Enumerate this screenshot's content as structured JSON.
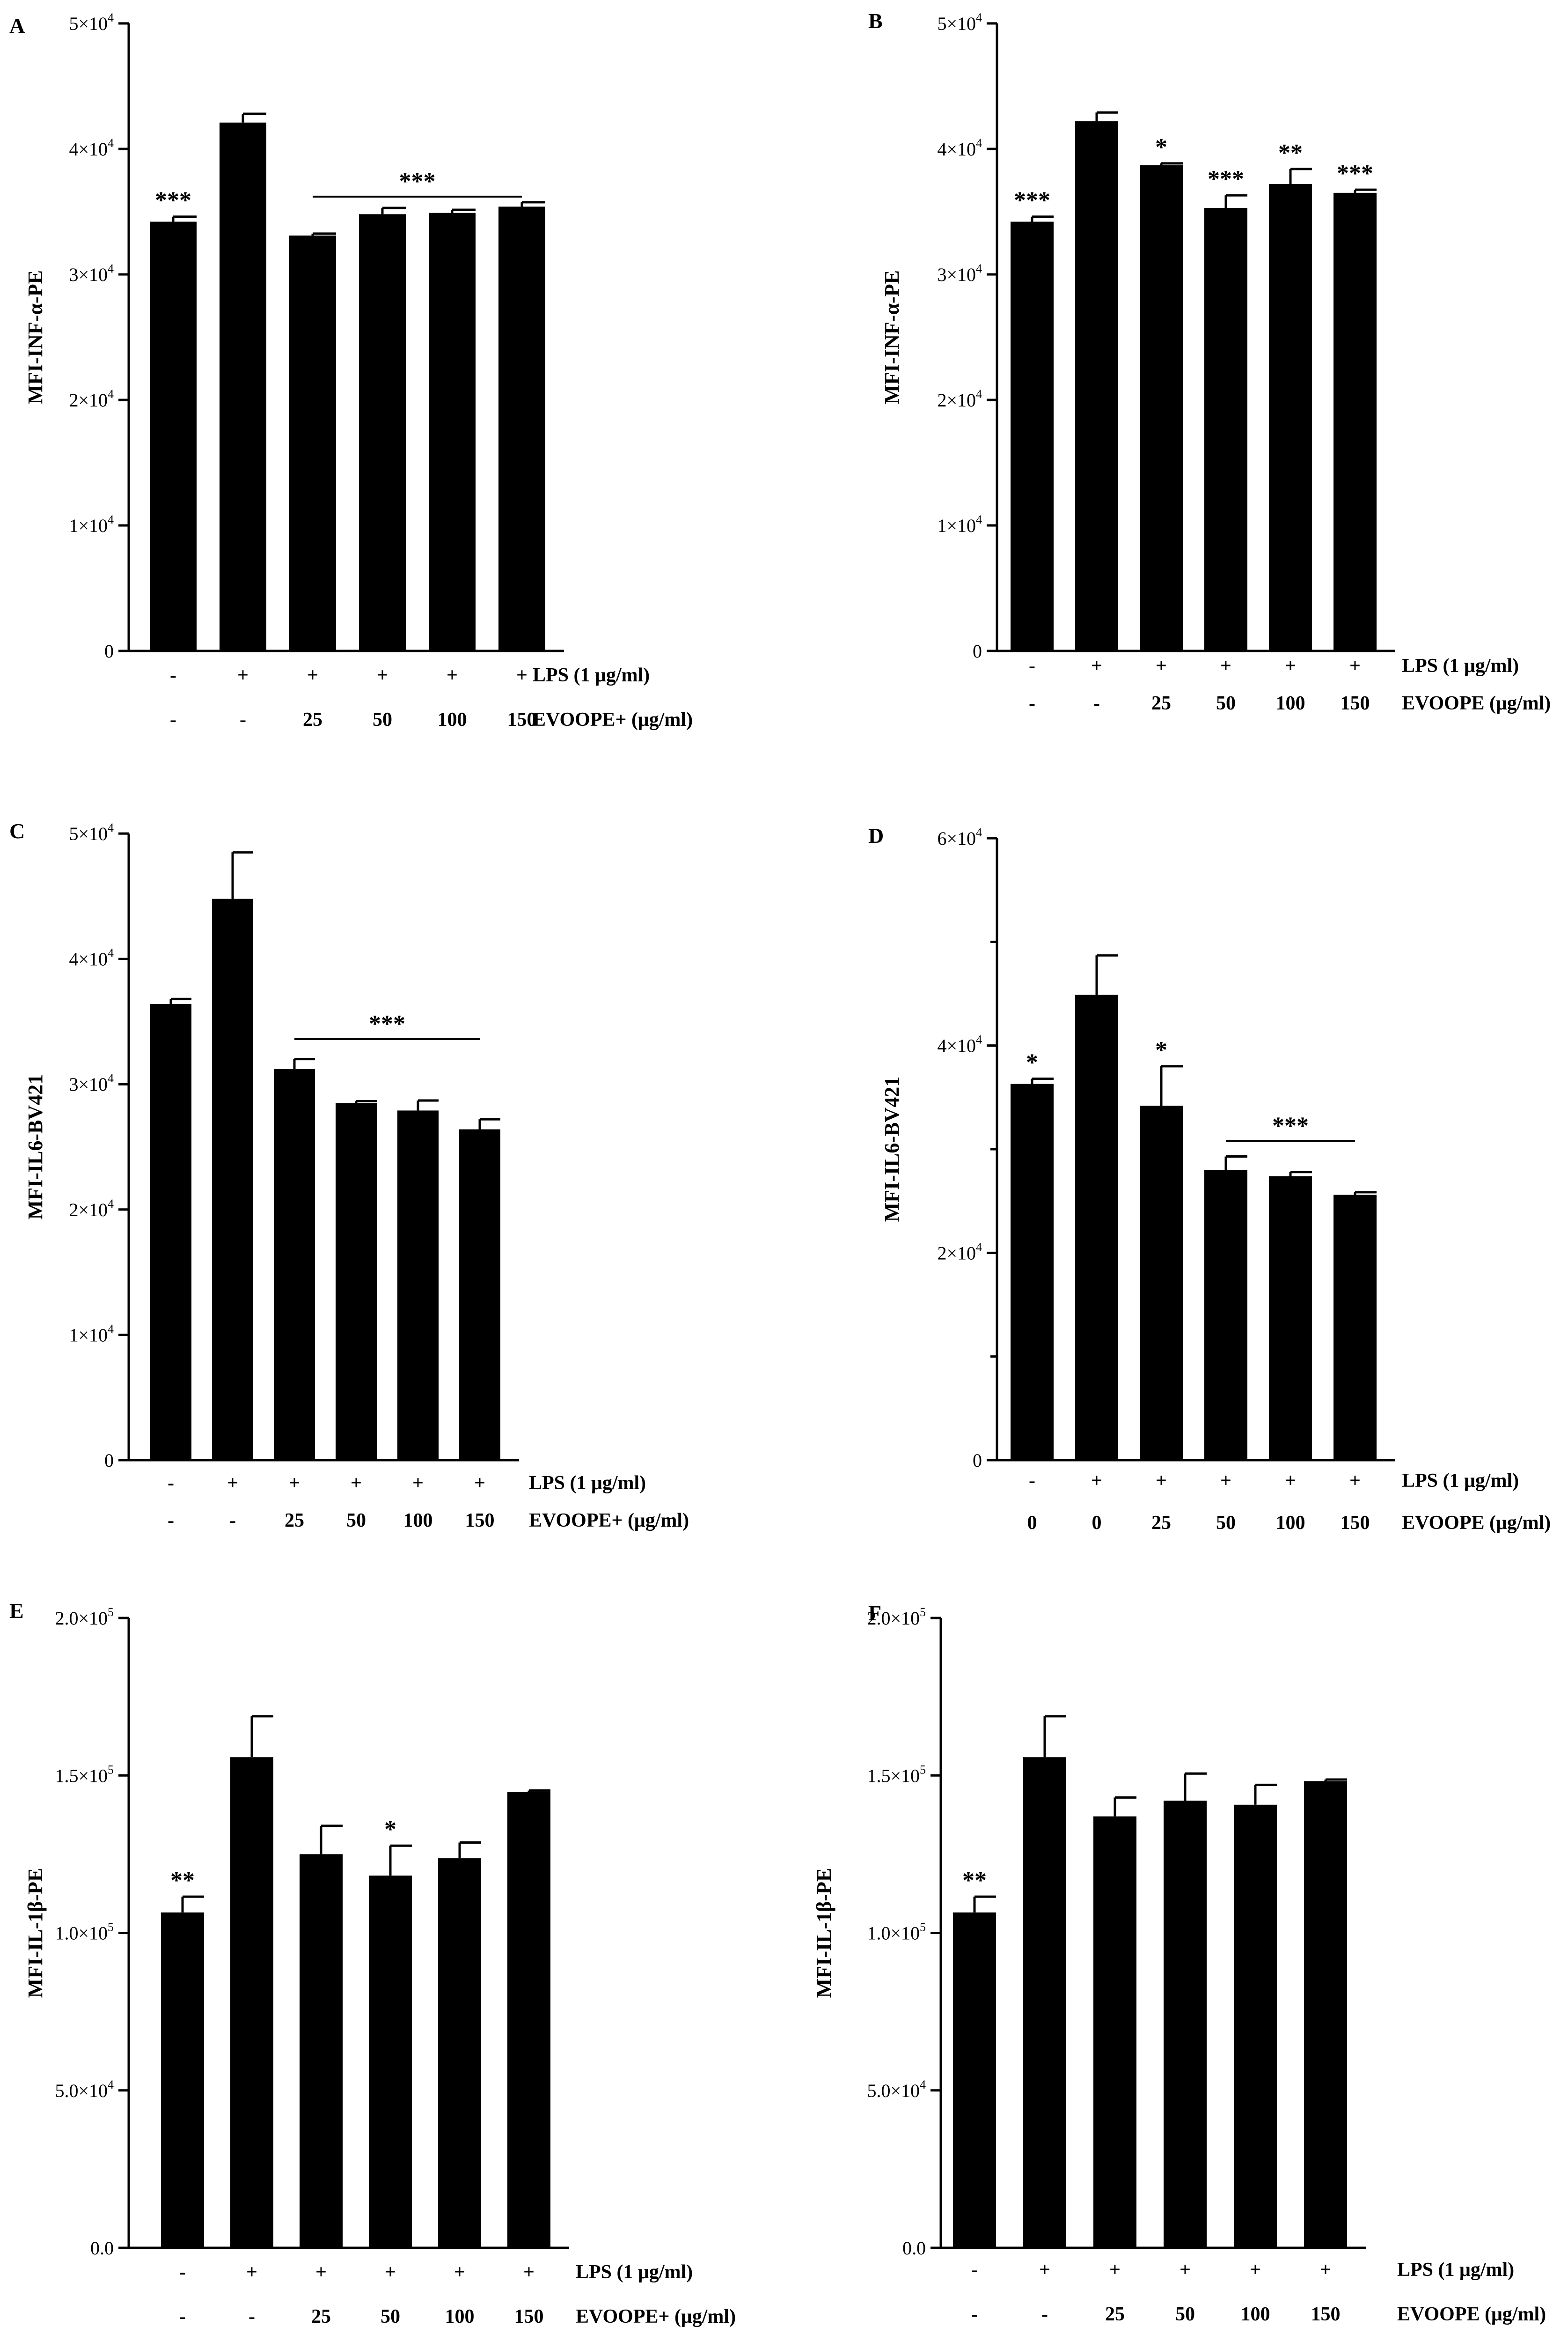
{
  "figure": {
    "background": "#ffffff",
    "bar_color": "#000000"
  },
  "chart_data": [
    {
      "type": "bar",
      "panel_label": "A",
      "ylabel": "MFI-INF-α-PE",
      "ylim": [
        0,
        50000
      ],
      "yticks": [
        0,
        10000,
        20000,
        30000,
        40000,
        50000
      ],
      "ytick_labels": [
        {
          "base": "0",
          "exp": ""
        },
        {
          "base": "1×10",
          "exp": "4"
        },
        {
          "base": "2×10",
          "exp": "4"
        },
        {
          "base": "3×10",
          "exp": "4"
        },
        {
          "base": "4×10",
          "exp": "4"
        },
        {
          "base": "5×10",
          "exp": "4"
        }
      ],
      "minor_ticks": [],
      "values": [
        34200,
        42100,
        33100,
        34800,
        34900,
        35400
      ],
      "errors": [
        400,
        700,
        150,
        500,
        250,
        350
      ],
      "annotations": [
        "***",
        "",
        "",
        "",
        "",
        ""
      ],
      "bracket": {
        "from": 2,
        "to": 5,
        "label": "***",
        "y": 36200
      },
      "rows": [
        {
          "label": "LPS (1 μg/ml)",
          "values": [
            "-",
            "+",
            "+",
            "+",
            "+",
            "+"
          ]
        },
        {
          "label": "EVOOPE+ (μg/ml)",
          "values": [
            "-",
            "-",
            "25",
            "50",
            "100",
            "150"
          ]
        }
      ]
    },
    {
      "type": "bar",
      "panel_label": "B",
      "ylabel": "MFI-INF-α-PE",
      "ylim": [
        0,
        50000
      ],
      "yticks": [
        0,
        10000,
        20000,
        30000,
        40000,
        50000
      ],
      "ytick_labels": [
        {
          "base": "0",
          "exp": ""
        },
        {
          "base": "1×10",
          "exp": "4"
        },
        {
          "base": "2×10",
          "exp": "4"
        },
        {
          "base": "3×10",
          "exp": "4"
        },
        {
          "base": "4×10",
          "exp": "4"
        },
        {
          "base": "5×10",
          "exp": "4"
        }
      ],
      "minor_ticks": [],
      "values": [
        34200,
        42200,
        38700,
        35300,
        37200,
        36500
      ],
      "errors": [
        400,
        700,
        150,
        1000,
        1200,
        250
      ],
      "annotations": [
        "***",
        "",
        "*",
        "***",
        "**",
        "***"
      ],
      "bracket": null,
      "rows": [
        {
          "label": "LPS (1 μg/ml)",
          "values": [
            "-",
            "+",
            "+",
            "+",
            "+",
            "+"
          ]
        },
        {
          "label": "EVOOPE (μg/ml)",
          "values": [
            "-",
            "-",
            "25",
            "50",
            "100",
            "150"
          ]
        }
      ]
    },
    {
      "type": "bar",
      "panel_label": "C",
      "ylabel": "MFI-IL6-BV421",
      "ylim": [
        0,
        50000
      ],
      "yticks": [
        0,
        10000,
        20000,
        30000,
        40000,
        50000
      ],
      "ytick_labels": [
        {
          "base": "0",
          "exp": ""
        },
        {
          "base": "1×10",
          "exp": "4"
        },
        {
          "base": "2×10",
          "exp": "4"
        },
        {
          "base": "3×10",
          "exp": "4"
        },
        {
          "base": "4×10",
          "exp": "4"
        },
        {
          "base": "5×10",
          "exp": "4"
        }
      ],
      "minor_ticks": [],
      "values": [
        36400,
        44800,
        31200,
        28500,
        27900,
        26400
      ],
      "errors": [
        400,
        3700,
        800,
        150,
        800,
        800
      ],
      "annotations": [
        "",
        "",
        "",
        "",
        "",
        ""
      ],
      "bracket": {
        "from": 2,
        "to": 5,
        "label": "***",
        "y": 33600
      },
      "rows": [
        {
          "label": "LPS (1 μg/ml)",
          "values": [
            "-",
            "+",
            "+",
            "+",
            "+",
            "+"
          ]
        },
        {
          "label": "EVOOPE+ (μg/ml)",
          "values": [
            "-",
            "-",
            "25",
            "50",
            "100",
            "150"
          ]
        }
      ]
    },
    {
      "type": "bar",
      "panel_label": "D",
      "ylabel": "MFI-IL6-BV421",
      "ylim": [
        0,
        60000
      ],
      "yticks": [
        0,
        20000,
        40000,
        60000
      ],
      "ytick_labels": [
        {
          "base": "0",
          "exp": ""
        },
        {
          "base": "2×10",
          "exp": "4"
        },
        {
          "base": "4×10",
          "exp": "4"
        },
        {
          "base": "6×10",
          "exp": "4"
        }
      ],
      "minor_ticks": [
        10000,
        30000,
        50000
      ],
      "values": [
        36300,
        44900,
        34200,
        28000,
        27400,
        25600
      ],
      "errors": [
        500,
        3800,
        3800,
        1300,
        400,
        250
      ],
      "annotations": [
        "*",
        "",
        "*",
        "",
        "",
        ""
      ],
      "bracket": {
        "from": 3,
        "to": 5,
        "label": "***",
        "y": 30800
      },
      "rows": [
        {
          "label": "LPS (1 μg/ml)",
          "values": [
            "-",
            "+",
            "+",
            "+",
            "+",
            "+"
          ]
        },
        {
          "label": "EVOOPE (μg/ml)",
          "values": [
            "0",
            "0",
            "25",
            "50",
            "100",
            "150"
          ]
        }
      ]
    },
    {
      "type": "bar",
      "panel_label": "E",
      "ylabel": "MFI-IL-1β-PE",
      "ylim": [
        0,
        200000
      ],
      "yticks": [
        0,
        50000,
        100000,
        150000,
        200000
      ],
      "ytick_labels": [
        {
          "base": "0.0",
          "exp": ""
        },
        {
          "base": "5.0×10",
          "exp": "4"
        },
        {
          "base": "1.0×10",
          "exp": "5"
        },
        {
          "base": "1.5×10",
          "exp": "5"
        },
        {
          "base": "2.0×10",
          "exp": "5"
        }
      ],
      "minor_ticks": [],
      "values": [
        106500,
        155800,
        125000,
        118200,
        123700,
        144700
      ],
      "errors": [
        5000,
        13000,
        9000,
        9500,
        5000,
        500
      ],
      "annotations": [
        "**",
        "",
        "",
        "*",
        "",
        ""
      ],
      "bracket": null,
      "rows": [
        {
          "label": "LPS (1 μg/ml)",
          "values": [
            "-",
            "+",
            "+",
            "+",
            "+",
            "+"
          ]
        },
        {
          "label": "EVOOPE+ (μg/ml)",
          "values": [
            "-",
            "-",
            "25",
            "50",
            "100",
            "150"
          ]
        }
      ]
    },
    {
      "type": "bar",
      "panel_label": "F",
      "ylabel": "MFI-IL-1β-PE",
      "ylim": [
        0,
        200000
      ],
      "yticks": [
        0,
        50000,
        100000,
        150000,
        200000
      ],
      "ytick_labels": [
        {
          "base": "0.0",
          "exp": ""
        },
        {
          "base": "5.0×10",
          "exp": "4"
        },
        {
          "base": "1.0×10",
          "exp": "5"
        },
        {
          "base": "1.5×10",
          "exp": "5"
        },
        {
          "base": "2.0×10",
          "exp": "5"
        }
      ],
      "minor_ticks": [],
      "values": [
        106500,
        155800,
        137000,
        142000,
        140700,
        148200
      ],
      "errors": [
        5000,
        13000,
        6000,
        8600,
        6300,
        500
      ],
      "annotations": [
        "**",
        "",
        "",
        "",
        "",
        ""
      ],
      "bracket": null,
      "rows": [
        {
          "label": "LPS (1 μg/ml)",
          "values": [
            "-",
            "+",
            "+",
            "+",
            "+",
            "+"
          ]
        },
        {
          "label": "EVOOPE (μg/ml)",
          "values": [
            "-",
            "-",
            "25",
            "50",
            "100",
            "150"
          ]
        }
      ]
    }
  ]
}
